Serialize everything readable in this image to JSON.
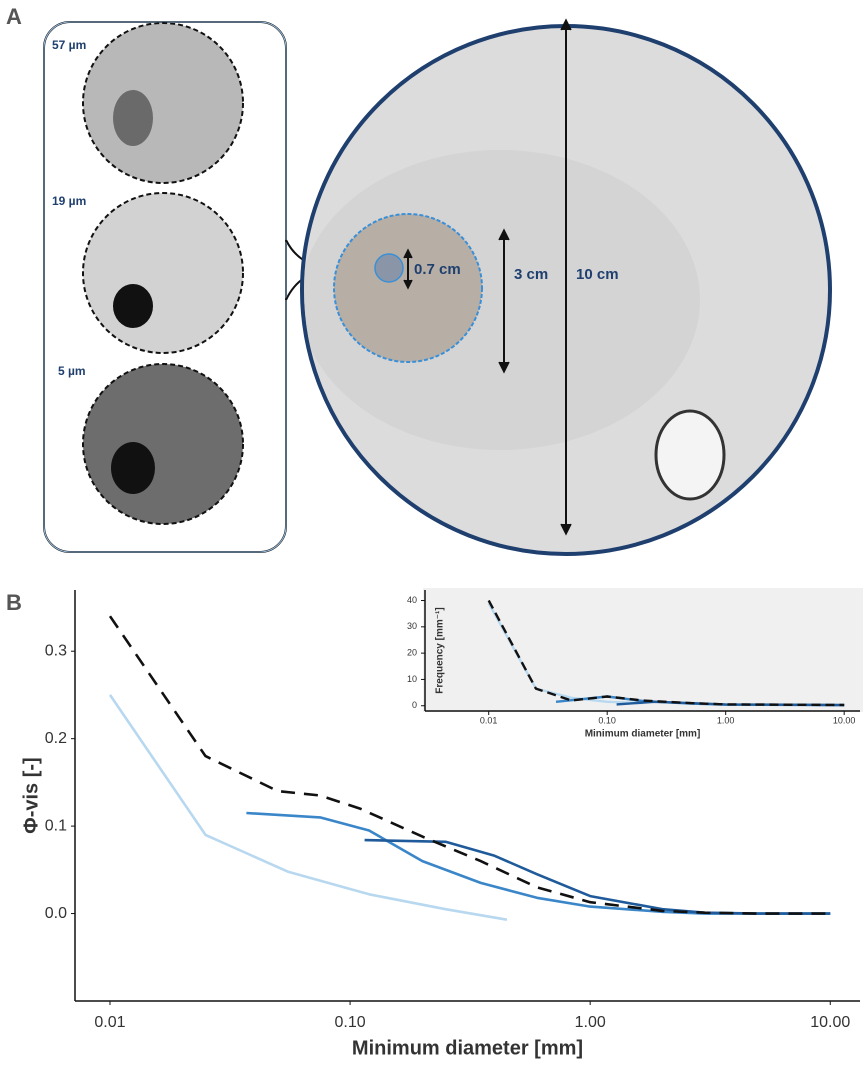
{
  "panel_a": {
    "label": "A",
    "resolutions": [
      "57 µm",
      "19 µm",
      "5 µm"
    ],
    "scale_labels": [
      "0.7 cm",
      "3 cm",
      "10 cm"
    ]
  },
  "panel_b": {
    "label": "B"
  },
  "chart_data": [
    {
      "type": "line",
      "x_label": "Minimum diameter [mm]",
      "y_label": "Φ-vis [-]",
      "log_x": true,
      "grid": false,
      "xlim": [
        0.00715,
        13.3
      ],
      "xticks": [
        0.01,
        {
          "value": 0.1,
          "label": "0.10"
        },
        {
          "value": 1,
          "label": "1.00"
        },
        {
          "value": 10,
          "label": "10.00"
        }
      ],
      "ylim": [
        -0.1,
        0.37
      ],
      "yticks": [
        {
          "value": 0,
          "label": "0.0"
        },
        0.1,
        0.2,
        0.3
      ],
      "series": [
        {
          "color": "#b8d8f0",
          "dash": false,
          "x": [
            0.01,
            0.025,
            0.055,
            0.12,
            0.25,
            0.45
          ],
          "values": [
            0.25,
            0.09,
            0.048,
            0.022,
            0.005,
            -0.007
          ]
        },
        {
          "color": "#3a86c8",
          "dash": false,
          "x": [
            0.037,
            0.075,
            0.12,
            0.2,
            0.35,
            0.6,
            1.0,
            2.0,
            3.0,
            10.0
          ],
          "values": [
            0.115,
            0.11,
            0.095,
            0.06,
            0.035,
            0.018,
            0.008,
            0.002,
            0,
            0
          ]
        },
        {
          "color": "#1f5a9a",
          "dash": false,
          "x": [
            0.115,
            0.25,
            0.4,
            0.6,
            1.0,
            2.0,
            3.0,
            5.0,
            10.0
          ],
          "values": [
            0.084,
            0.082,
            0.066,
            0.045,
            0.02,
            0.005,
            0.001,
            0,
            0
          ]
        },
        {
          "color": "#111111",
          "dash": true,
          "x": [
            0.01,
            0.025,
            0.05,
            0.075,
            0.11,
            0.2,
            0.35,
            0.6,
            1.0,
            2.0,
            3.0,
            5.0,
            10.0
          ],
          "values": [
            0.34,
            0.18,
            0.14,
            0.135,
            0.12,
            0.088,
            0.06,
            0.03,
            0.013,
            0.003,
            0.001,
            0,
            0
          ]
        }
      ]
    },
    {
      "type": "line",
      "x_label": "Minimum diameter [mm]",
      "y_label": "Frequency [mm⁻¹]",
      "log_x": true,
      "grid": false,
      "xlim": [
        0.0029,
        13.6
      ],
      "xticks": [
        0.01,
        {
          "value": 0.1,
          "label": "0.10"
        },
        {
          "value": 1,
          "label": "1.00"
        },
        {
          "value": 10,
          "label": "10.00"
        }
      ],
      "ylim": [
        -2,
        44
      ],
      "yticks": [
        0,
        10,
        20,
        30,
        40
      ],
      "series": [
        {
          "color": "#b8d8f0",
          "dash": false,
          "x": [
            0.01,
            0.025,
            0.05,
            0.1,
            0.2
          ],
          "values": [
            39,
            6.5,
            3,
            1.5,
            1
          ]
        },
        {
          "color": "#3a86c8",
          "dash": false,
          "x": [
            0.037,
            0.1,
            0.2,
            0.5,
            1,
            10
          ],
          "values": [
            1.5,
            3.5,
            1.8,
            0.8,
            0.4,
            0.2
          ]
        },
        {
          "color": "#1f5a9a",
          "dash": false,
          "x": [
            0.12,
            0.25,
            0.5,
            1,
            10
          ],
          "values": [
            0.5,
            1.5,
            1,
            0.5,
            0.3
          ]
        },
        {
          "color": "#111111",
          "dash": true,
          "x": [
            0.01,
            0.025,
            0.05,
            0.1,
            0.2,
            0.5,
            1,
            10
          ],
          "values": [
            40,
            6.5,
            2,
            3.5,
            2,
            1,
            0.5,
            0.3
          ]
        }
      ]
    }
  ]
}
